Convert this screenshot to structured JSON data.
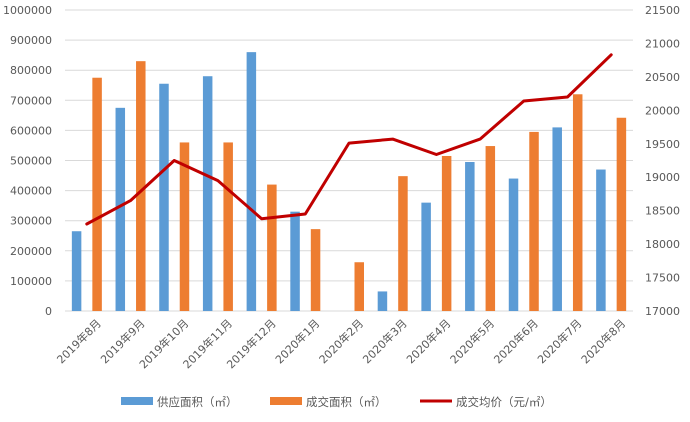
{
  "chart_data": {
    "type": "bar",
    "categories": [
      "2019年8月",
      "2019年9月",
      "2019年10月",
      "2019年11月",
      "2019年12月",
      "2020年1月",
      "2020年2月",
      "2020年3月",
      "2020年4月",
      "2020年5月",
      "2020年6月",
      "2020年7月",
      "2020年8月"
    ],
    "series": [
      {
        "name": "供应面积（㎡）",
        "type": "bar",
        "axis": "left",
        "color": "#5B9BD5",
        "values": [
          265000,
          675000,
          755000,
          780000,
          860000,
          330000,
          0,
          65000,
          360000,
          495000,
          440000,
          610000,
          470000
        ]
      },
      {
        "name": "成交面积（㎡）",
        "type": "bar",
        "axis": "left",
        "color": "#ED7D31",
        "values": [
          775000,
          830000,
          560000,
          560000,
          420000,
          272000,
          162000,
          448000,
          515000,
          548000,
          595000,
          720000,
          642000
        ]
      },
      {
        "name": "成交均价（元/㎡）",
        "type": "line",
        "axis": "right",
        "color": "#C00000",
        "values": [
          18300,
          18650,
          19250,
          18950,
          18380,
          18450,
          19510,
          19570,
          19340,
          19570,
          20140,
          20200,
          20830
        ]
      }
    ],
    "y_left": {
      "min": 0,
      "max": 1000000,
      "step": 100000,
      "ticks": [
        "0",
        "100000",
        "200000",
        "300000",
        "400000",
        "500000",
        "600000",
        "700000",
        "800000",
        "900000",
        "1000000"
      ]
    },
    "y_right": {
      "min": 17000,
      "max": 21500,
      "step": 500,
      "ticks": [
        "17000",
        "17500",
        "18000",
        "18500",
        "19000",
        "19500",
        "20000",
        "20500",
        "21000",
        "21500"
      ]
    },
    "grid": true,
    "legend_position": "bottom"
  }
}
